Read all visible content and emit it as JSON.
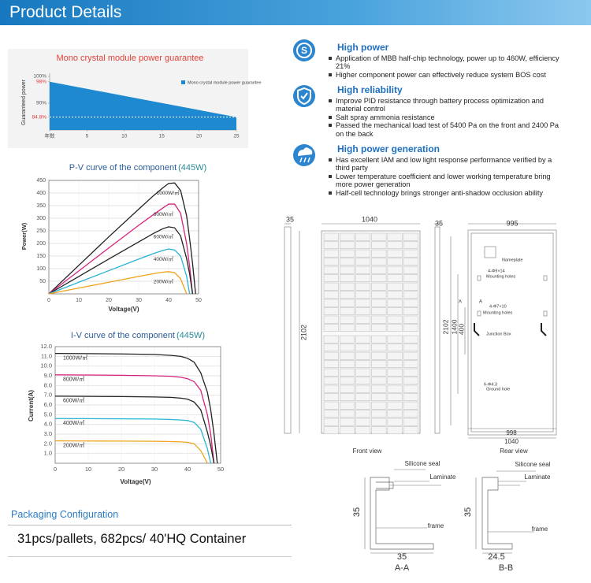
{
  "header": {
    "title": "Product Details"
  },
  "chart_data": [
    {
      "type": "area",
      "title": "Mono crystal module power guarantee",
      "y_label": "Guaranteed power",
      "x": [
        0,
        25
      ],
      "series": [
        {
          "name": "Mono crystal module power guarantee",
          "color": "#1e88d0",
          "values": [
            98,
            84.8
          ]
        }
      ],
      "xlim": [
        0,
        25
      ],
      "xticks": [
        {
          "value": 0,
          "label": "年数"
        },
        5,
        10,
        15,
        20,
        25
      ],
      "ylim": [
        80,
        100
      ],
      "yticks": [
        {
          "value": 100,
          "label": "100%"
        },
        {
          "value": 98,
          "label": "98%"
        },
        {
          "value": 90,
          "label": "90%"
        },
        {
          "value": 84.8,
          "label": "84.8%"
        }
      ],
      "reference_line": 84.8,
      "highlight_color": "#e53935",
      "legend": "top-right",
      "grid": false
    },
    {
      "type": "line",
      "title": "P-V curve of the component",
      "subtitle": "(445W)",
      "x_label": "Voltage(V)",
      "y_label": "Power(W)",
      "x": [
        0,
        10,
        20,
        30,
        35,
        38,
        40,
        42,
        44,
        46,
        47,
        48,
        49
      ],
      "series": [
        {
          "name": "1000W/㎡",
          "color": "#222222",
          "values": [
            0,
            113,
            226,
            336,
            390,
            420,
            438,
            440,
            410,
            310,
            220,
            120,
            0
          ]
        },
        {
          "name": "800W/㎡",
          "color": "#d6247e",
          "values": [
            0,
            91,
            182,
            272,
            315,
            340,
            356,
            356,
            320,
            200,
            110,
            0,
            null
          ]
        },
        {
          "name": "600W/㎡",
          "color": "#222222",
          "values": [
            0,
            69,
            138,
            206,
            240,
            258,
            266,
            262,
            230,
            140,
            80,
            0,
            null
          ]
        },
        {
          "name": "400W/㎡",
          "color": "#27b3d6",
          "values": [
            0,
            46,
            92,
            138,
            160,
            172,
            178,
            174,
            150,
            70,
            0,
            null,
            null
          ]
        },
        {
          "name": "200W/㎡",
          "color": "#f0a21a",
          "values": [
            0,
            23,
            46,
            69,
            80,
            86,
            88,
            84,
            60,
            0,
            null,
            null,
            null
          ]
        }
      ],
      "xlim": [
        0,
        50
      ],
      "xticks": [
        0,
        10,
        20,
        30,
        40,
        50
      ],
      "ylim": [
        0,
        450
      ],
      "yticks": [
        50,
        100,
        150,
        200,
        250,
        300,
        350,
        400,
        450
      ],
      "grid": true
    },
    {
      "type": "line",
      "title": "I-V curve of the component",
      "subtitle": "(445W)",
      "x_label": "Voltage(V)",
      "y_label": "Current(A)",
      "x": [
        0,
        10,
        20,
        30,
        35,
        38,
        40,
        42,
        44,
        46,
        47,
        48,
        49
      ],
      "series": [
        {
          "name": "1000W/㎡",
          "color": "#222222",
          "values": [
            11.3,
            11.28,
            11.25,
            11.2,
            11.1,
            11,
            10.8,
            10.4,
            9.3,
            7.3,
            5.5,
            3,
            0
          ]
        },
        {
          "name": "800W/㎡",
          "color": "#d6247e",
          "values": [
            9.1,
            9.08,
            9.05,
            9,
            8.95,
            8.85,
            8.7,
            8.4,
            7.5,
            5,
            3,
            0,
            null
          ]
        },
        {
          "name": "600W/㎡",
          "color": "#222222",
          "values": [
            6.9,
            6.88,
            6.86,
            6.82,
            6.78,
            6.7,
            6.6,
            6.3,
            5.5,
            3.2,
            1.8,
            0,
            null
          ]
        },
        {
          "name": "400W/㎡",
          "color": "#27b3d6",
          "values": [
            4.6,
            4.59,
            4.57,
            4.55,
            4.5,
            4.45,
            4.4,
            4.2,
            3.5,
            1.5,
            0,
            null,
            null
          ]
        },
        {
          "name": "200W/㎡",
          "color": "#f0a21a",
          "values": [
            2.3,
            2.29,
            2.28,
            2.26,
            2.23,
            2.2,
            2.15,
            2,
            1.3,
            0,
            null,
            null,
            null
          ]
        }
      ],
      "xlim": [
        0,
        50
      ],
      "xticks": [
        0,
        10,
        20,
        30,
        40,
        50
      ],
      "ylim": [
        0,
        12
      ],
      "yticks": [
        {
          "value": 1,
          "label": "1.0"
        },
        {
          "value": 2,
          "label": "2.0"
        },
        {
          "value": 3,
          "label": "3.0"
        },
        {
          "value": 4,
          "label": "4.0"
        },
        {
          "value": 5,
          "label": "5.0"
        },
        {
          "value": 6,
          "label": "6.0"
        },
        {
          "value": 7,
          "label": "7.0"
        },
        {
          "value": 8,
          "label": "8.0"
        },
        {
          "value": 9,
          "label": "9.0"
        },
        {
          "value": 10,
          "label": "10.0"
        },
        {
          "value": 11,
          "label": "11.0"
        },
        {
          "value": 12,
          "label": "12.0"
        }
      ],
      "grid": true
    }
  ],
  "features": [
    {
      "title": "High power",
      "items": [
        "Application of MBB half-chip technology, power up to 460W, efficiency 21%",
        "Higher component power can effectively reduce system BOS cost"
      ]
    },
    {
      "title": "High reliability",
      "items": [
        "Improve PID resistance through battery process optimization and material control",
        "Salt spray ammonia resistance",
        "Passed the mechanical load test of 5400 Pa on the front and 2400 Pa on the back"
      ]
    },
    {
      "title": "High power generation",
      "items": [
        "Has excellent IAM and low light response performance verified by a third party",
        "Lower temperature coefficient and lower working temperature bring more power generation",
        "Half-cell technology brings stronger anti-shadow occlusion ability"
      ]
    }
  ],
  "drawing_labels": [
    "35",
    "1040",
    "2102",
    "35",
    "995",
    "Nameplate",
    "4-Φ9×14",
    "Mounting holes",
    "A",
    "A",
    "4-Φ7×10",
    "Mounting holes",
    "2102",
    "1400",
    "400",
    "Junction Box",
    "6-Φ4.3",
    "Ground hole",
    "998",
    "1040",
    "Front view",
    "Rear view",
    "Silicone seal",
    "Laminate",
    "frame",
    "35",
    "35",
    "A-A",
    "Silicone seal",
    "Laminate",
    "frame",
    "35",
    "24.5",
    "B-B"
  ],
  "packaging": {
    "title": "Packaging Configuration",
    "text": "31pcs/pallets, 682pcs/ 40'HQ Container"
  }
}
